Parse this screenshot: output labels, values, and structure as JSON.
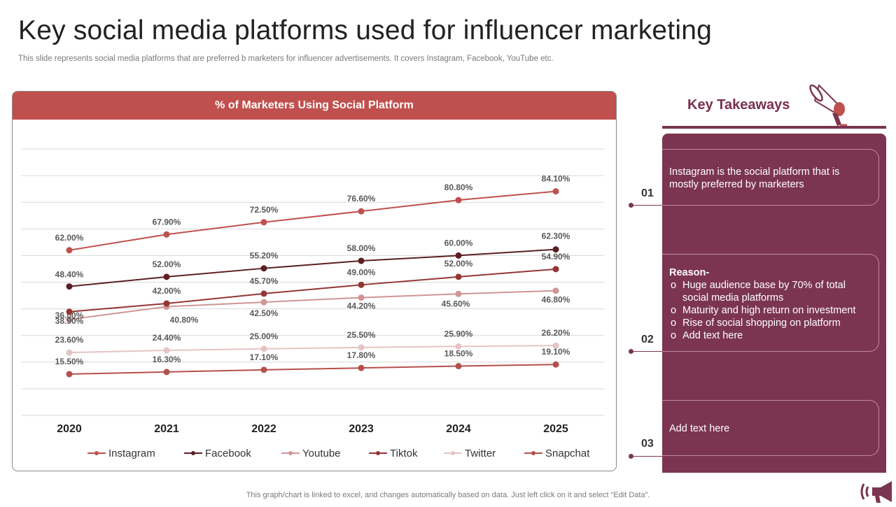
{
  "slide": {
    "title": "Key social media platforms used for influencer marketing",
    "subtitle": "This slide represents social media platforms that are preferred b marketers for influencer advertisements. It covers Instagram, Facebook, YouTube etc.",
    "footer": "This graph/chart is linked to excel,  and changes automatically based on data. Just left click on it and select “Edit Data”."
  },
  "chart_data": {
    "type": "line",
    "title": "% of Marketers  Using Social Platform",
    "xlabel": "",
    "ylabel": "",
    "categories": [
      "2020",
      "2021",
      "2022",
      "2023",
      "2024",
      "2025"
    ],
    "ylim": [
      0,
      100
    ],
    "grid": true,
    "legend_position": "bottom",
    "series": [
      {
        "name": "Instagram",
        "color": "#c0504d",
        "values": [
          62.0,
          67.9,
          72.5,
          76.6,
          80.8,
          84.1
        ],
        "labels": [
          "62.00%",
          "67.90%",
          "72.50%",
          "76.60%",
          "80.80%",
          "84.10%"
        ]
      },
      {
        "name": "Facebook",
        "color": "#5c1f22",
        "values": [
          48.4,
          52.0,
          55.2,
          58.0,
          60.0,
          62.3
        ],
        "labels": [
          "48.40%",
          "52.00%",
          "55.20%",
          "58.00%",
          "60.00%",
          "62.30%"
        ]
      },
      {
        "name": "Youtube",
        "color": "#d09594",
        "values": [
          36.0,
          40.8,
          42.5,
          44.2,
          45.6,
          46.8
        ],
        "labels": [
          "36.00%",
          "40.80%",
          "42.50%",
          "44.20%",
          "45.60%",
          "46.80%"
        ]
      },
      {
        "name": "Tiktok",
        "color": "#943634",
        "values": [
          38.9,
          42.0,
          45.7,
          49.0,
          52.0,
          54.9
        ],
        "labels": [
          "38.90%",
          "42.00%",
          "45.70%",
          "49.00%",
          "52.00%",
          "54.90%"
        ]
      },
      {
        "name": "Twitter",
        "color": "#e6c4c4",
        "values": [
          23.6,
          24.4,
          25.0,
          25.5,
          25.9,
          26.2
        ],
        "labels": [
          "23.60%",
          "24.40%",
          "25.00%",
          "25.50%",
          "25.90%",
          "26.20%"
        ]
      },
      {
        "name": "Snapchat",
        "color": "#b5504c",
        "values": [
          15.5,
          16.3,
          17.1,
          17.8,
          18.5,
          19.1
        ],
        "labels": [
          "15.50%",
          "16.30%",
          "17.10%",
          "17.80%",
          "18.50%",
          "19.10%"
        ]
      }
    ]
  },
  "takeaways": {
    "title": "Key Takeaways",
    "icon": "megaphone-icon",
    "items": [
      {
        "number": "01",
        "text": "Instagram is the social platform that is mostly preferred by marketers"
      },
      {
        "number": "02",
        "heading": "Reason-",
        "bullets": [
          "Huge audience base by 70%  of total social media platforms",
          "Maturity and high return on investment",
          "Rise of social shopping on platform",
          "Add text here"
        ]
      },
      {
        "number": "03",
        "text": "Add text here"
      }
    ]
  },
  "colors": {
    "accent": "#c0504d",
    "panel": "#7b3550"
  }
}
